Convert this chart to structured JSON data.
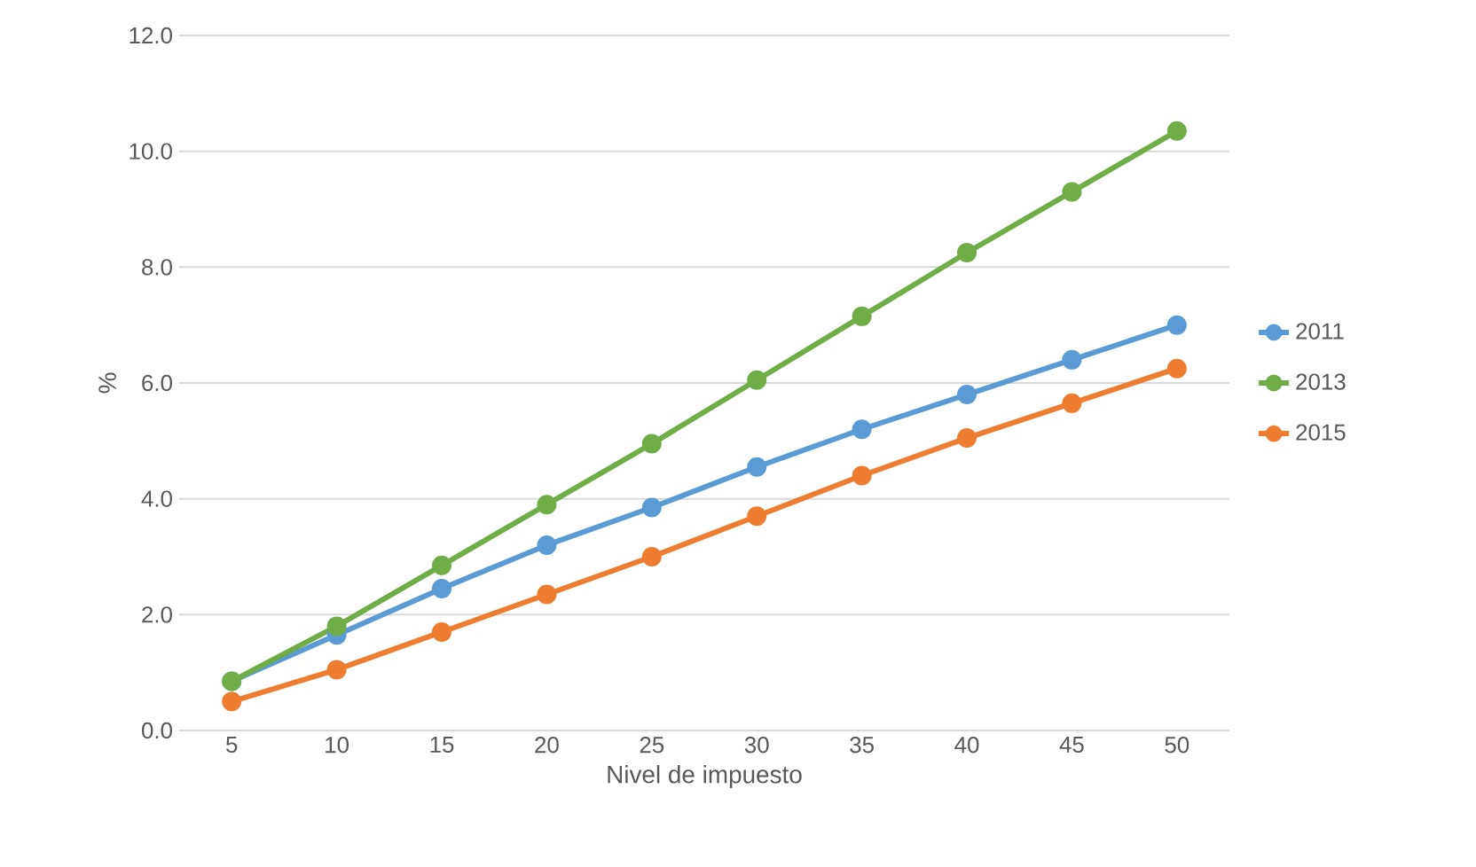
{
  "chart_data": {
    "type": "line",
    "xlabel": "Nivel de impuesto",
    "ylabel": "%",
    "categories": [
      "5",
      "10",
      "15",
      "20",
      "25",
      "30",
      "35",
      "40",
      "45",
      "50"
    ],
    "series": [
      {
        "name": "2011",
        "color": "#5b9bd5",
        "values": [
          0.85,
          1.65,
          2.45,
          3.2,
          3.85,
          4.55,
          5.2,
          5.8,
          6.4,
          7.0
        ]
      },
      {
        "name": "2013",
        "color": "#70ad47",
        "values": [
          0.85,
          1.8,
          2.85,
          3.9,
          4.95,
          6.05,
          7.15,
          8.25,
          9.3,
          10.35
        ]
      },
      {
        "name": "2015",
        "color": "#ed7d31",
        "values": [
          0.5,
          1.05,
          1.7,
          2.35,
          3.0,
          3.7,
          4.4,
          5.05,
          5.65,
          6.25
        ]
      }
    ],
    "ylim": [
      0,
      12
    ],
    "yticks": [
      {
        "value": 0,
        "label": "0.0"
      },
      {
        "value": 2,
        "label": "2.0"
      },
      {
        "value": 4,
        "label": "4.0"
      },
      {
        "value": 6,
        "label": "6.0"
      },
      {
        "value": 8,
        "label": "8.0"
      },
      {
        "value": 10,
        "label": "10.0"
      },
      {
        "value": 12,
        "label": "12.0"
      }
    ],
    "grid": "y",
    "legend": "right",
    "marker": "circle",
    "line_style": "solid"
  }
}
